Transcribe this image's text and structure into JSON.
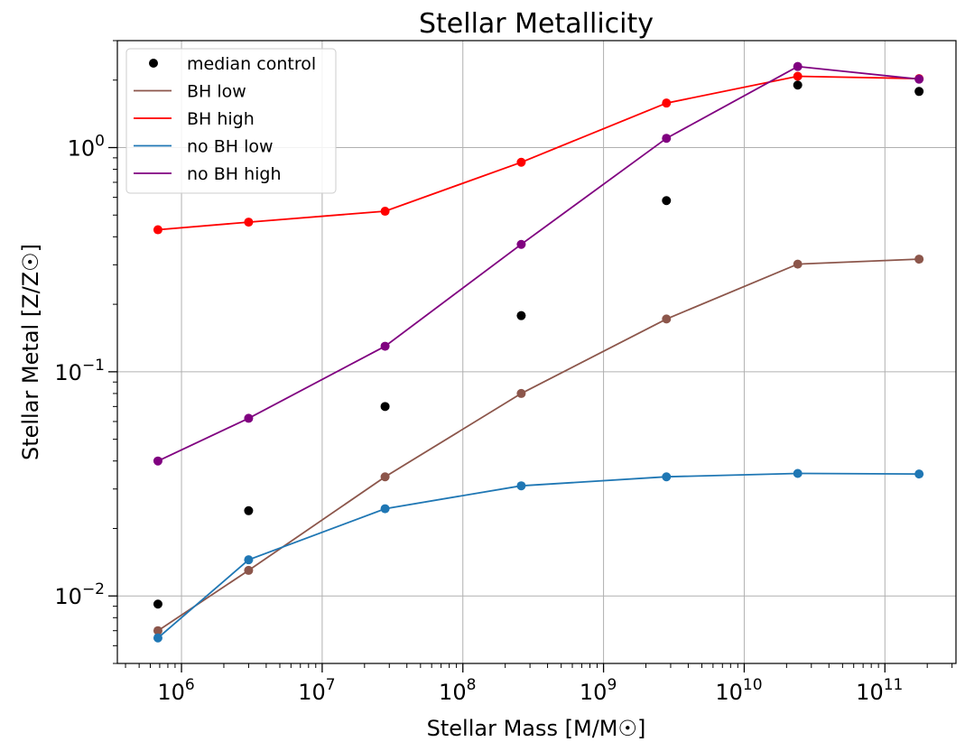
{
  "chart_data": {
    "type": "line",
    "title": "Stellar Metallicity",
    "xlabel": "Stellar Mass [M/M☉]",
    "ylabel": "Stellar Metal [Z/Z☉]",
    "xscale": "log",
    "yscale": "log",
    "xlim": [
      350000,
      320000000000
    ],
    "ylim": [
      0.005,
      3.0
    ],
    "x_ticks": [
      {
        "value": 1000000,
        "base": "10",
        "exp": "6"
      },
      {
        "value": 10000000,
        "base": "10",
        "exp": "7"
      },
      {
        "value": 100000000,
        "base": "10",
        "exp": "8"
      },
      {
        "value": 1000000000,
        "base": "10",
        "exp": "9"
      },
      {
        "value": 10000000000,
        "base": "10",
        "exp": "10"
      },
      {
        "value": 100000000000,
        "base": "10",
        "exp": "11"
      }
    ],
    "y_ticks": [
      {
        "value": 0.01,
        "mant": "10",
        "exp": "−2"
      },
      {
        "value": 0.1,
        "mant": "10",
        "exp": "−1"
      },
      {
        "value": 1,
        "mant": "10",
        "exp": "0"
      }
    ],
    "grid": true,
    "legend_position": "top-left",
    "x": [
      680000,
      3000000,
      28000000,
      260000000,
      2800000000,
      24000000000,
      175000000000
    ],
    "series": [
      {
        "name": "median control",
        "kind": "scatter",
        "color": "#000000",
        "values": [
          0.0092,
          0.024,
          0.07,
          0.178,
          0.58,
          1.9,
          1.78
        ]
      },
      {
        "name": "BH low",
        "kind": "line",
        "color": "#8c564b",
        "values": [
          0.007,
          0.013,
          0.034,
          0.08,
          0.172,
          0.302,
          0.318
        ]
      },
      {
        "name": "BH high",
        "kind": "line",
        "color": "#ff0000",
        "values": [
          0.43,
          0.465,
          0.52,
          0.86,
          1.58,
          2.08,
          2.03
        ]
      },
      {
        "name": "no BH low",
        "kind": "line",
        "color": "#1f77b4",
        "values": [
          0.0065,
          0.0145,
          0.0245,
          0.031,
          0.034,
          0.0352,
          0.035
        ]
      },
      {
        "name": "no BH high",
        "kind": "line",
        "color": "#800080",
        "values": [
          0.04,
          0.062,
          0.13,
          0.37,
          1.1,
          2.3,
          2.02
        ]
      }
    ]
  }
}
